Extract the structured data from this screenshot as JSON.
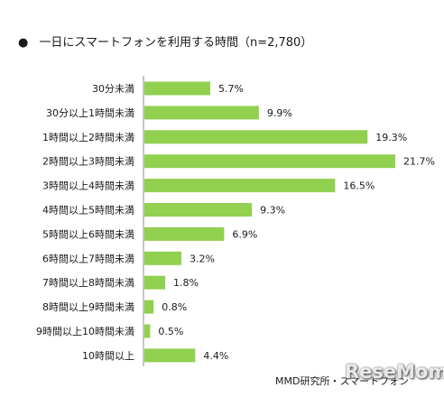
{
  "chart_data": {
    "type": "bar",
    "orientation": "horizontal",
    "title": "一日にスマートフォンを利用する時間（n=2,780）",
    "categories": [
      "30分未満",
      "30分以上1時間未満",
      "1時間以上2時間未満",
      "2時間以上3時間未満",
      "3時間以上4時間未満",
      "4時間以上5時間未満",
      "5時間以上6時間未満",
      "6時間以上7時間未満",
      "7時間以上8時間未満",
      "8時間以上9時間未満",
      "9時間以上10時間未満",
      "10時間以上"
    ],
    "values": [
      5.7,
      9.9,
      19.3,
      21.7,
      16.5,
      9.3,
      6.9,
      3.2,
      1.8,
      0.8,
      0.5,
      4.4
    ],
    "value_suffix": "%",
    "bar_color": "#92d050",
    "grid": false,
    "legend": "none"
  },
  "title_bullet": "●",
  "source": "MMD研究所・スマートフォン",
  "watermark": "ReseMom"
}
